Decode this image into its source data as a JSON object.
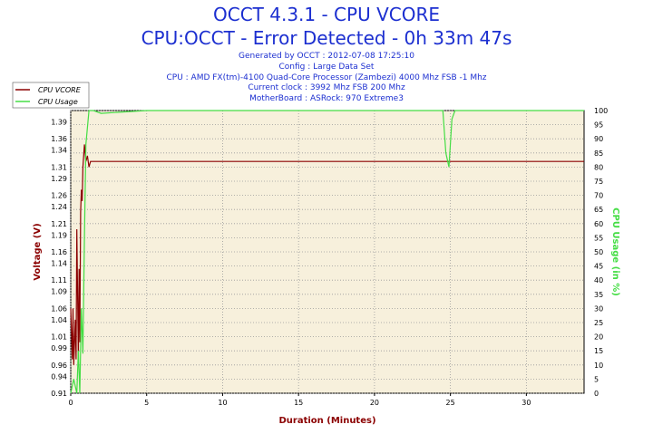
{
  "header": {
    "title": "OCCT 4.3.1 - CPU VCORE",
    "subtitle": "CPU:OCCT - Error Detected - 0h 33m 47s",
    "info_lines": [
      "Generated by OCCT : 2012-07-08 17:25:10",
      "Config : Large Data Set",
      "CPU : AMD FX(tm)-4100 Quad-Core Processor (Zambezi) 4000 Mhz FSB -1 Mhz",
      "Current clock : 3992 Mhz FSB 200 Mhz",
      "MotherBoard : ASRock: 970 Extreme3"
    ]
  },
  "colors": {
    "vcore": "#8b0000",
    "usage": "#44dd44",
    "plot_bg": "#f7f0dc",
    "grid": "#9a9a9a",
    "title": "#1c2fd0"
  },
  "chart_data": {
    "type": "line",
    "xlabel": "Duration (Minutes)",
    "ylabel_left": "Voltage (V)",
    "ylabel_right": "CPU Usage (in %)",
    "xlim": [
      0,
      33.8
    ],
    "ylim_left": [
      0.91,
      1.41
    ],
    "ylim_right": [
      0,
      100
    ],
    "x_ticks": [
      0,
      5,
      10,
      15,
      20,
      25,
      30
    ],
    "y_left_ticks": [
      0.91,
      0.94,
      0.96,
      0.99,
      1.01,
      1.04,
      1.06,
      1.09,
      1.11,
      1.14,
      1.16,
      1.19,
      1.21,
      1.24,
      1.26,
      1.29,
      1.31,
      1.34,
      1.36,
      1.39
    ],
    "y_right_ticks": [
      0,
      5,
      10,
      15,
      20,
      25,
      30,
      35,
      40,
      45,
      50,
      55,
      60,
      65,
      70,
      75,
      80,
      85,
      90,
      95,
      100
    ],
    "grid": true,
    "legend_position": "top-left",
    "series": [
      {
        "name": "CPU VCORE",
        "axis": "left",
        "x": [
          0,
          0.1,
          0.15,
          0.2,
          0.3,
          0.35,
          0.4,
          0.5,
          0.55,
          0.6,
          0.65,
          0.7,
          0.75,
          0.8,
          0.9,
          1.0,
          1.1,
          1.2,
          1.3,
          1.5,
          2,
          3,
          4,
          5,
          6,
          7,
          8,
          9,
          10,
          11,
          12,
          13,
          14,
          15,
          16,
          17,
          18,
          19,
          20,
          21,
          22,
          23,
          24,
          25,
          26,
          27,
          28,
          29,
          30,
          31,
          32,
          33,
          33.8
        ],
        "values": [
          1.06,
          0.97,
          1.06,
          0.96,
          1.04,
          0.97,
          1.2,
          0.97,
          1.13,
          1.0,
          1.23,
          1.27,
          1.25,
          1.31,
          1.35,
          1.32,
          1.33,
          1.31,
          1.32,
          1.32,
          1.32,
          1.32,
          1.32,
          1.32,
          1.32,
          1.32,
          1.32,
          1.32,
          1.32,
          1.32,
          1.32,
          1.32,
          1.32,
          1.32,
          1.32,
          1.32,
          1.32,
          1.32,
          1.32,
          1.32,
          1.32,
          1.32,
          1.32,
          1.32,
          1.32,
          1.32,
          1.32,
          1.32,
          1.32,
          1.32,
          1.32,
          1.32,
          1.32
        ]
      },
      {
        "name": "CPU Usage",
        "axis": "right",
        "x": [
          0,
          0.2,
          0.4,
          0.5,
          0.6,
          0.7,
          0.8,
          0.9,
          1.0,
          1.2,
          1.5,
          2,
          5,
          10,
          15,
          20,
          24.5,
          24.7,
          24.9,
          25.1,
          25.3,
          28,
          30,
          33.8
        ],
        "values": [
          0,
          5,
          0,
          15,
          0,
          30,
          14,
          55,
          88,
          100,
          100,
          99,
          100,
          100,
          100,
          100,
          100,
          85,
          80,
          97,
          100,
          100,
          100,
          100
        ]
      }
    ]
  }
}
